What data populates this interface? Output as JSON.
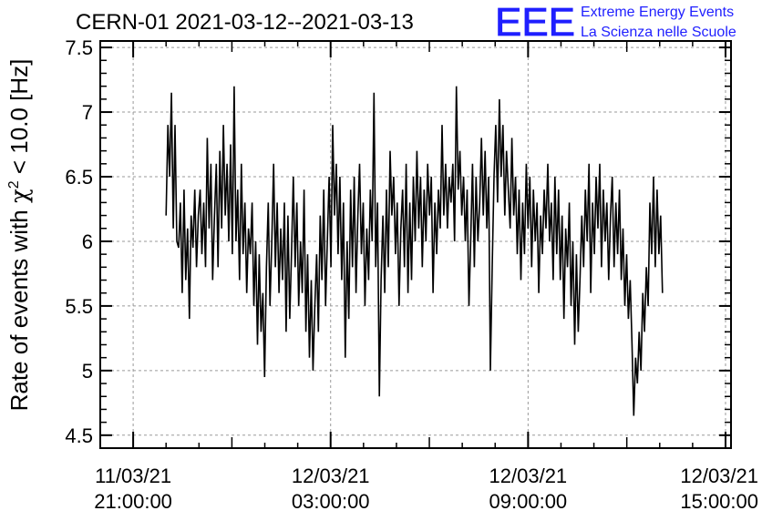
{
  "title": "CERN-01 2021-03-12--2021-03-13",
  "logo": {
    "mark": "EEE",
    "line1": "Extreme Energy Events",
    "line2": "La Scienza nelle Scuole",
    "color": "#1f1fff"
  },
  "y_axis_label": {
    "before": "Rate of events with ",
    "chi": "χ",
    "sup": "2",
    "after": " < 10.0 [Hz]"
  },
  "chart_data": {
    "type": "line",
    "title": "CERN-01 2021-03-12--2021-03-13",
    "ylabel": "Rate of events with χ² < 10.0 [Hz]",
    "xlabel": "",
    "ylim": [
      4.4,
      7.55
    ],
    "xlim": [
      "2021-03-11 20:00:00",
      "2021-03-12 15:10:00"
    ],
    "grid": true,
    "line_color": "#000000",
    "yticks": [
      {
        "value": 4.5,
        "label": "4.5"
      },
      {
        "value": 5,
        "label": "5"
      },
      {
        "value": 5.5,
        "label": "5.5"
      },
      {
        "value": 6,
        "label": "6"
      },
      {
        "value": 6.5,
        "label": "6.5"
      },
      {
        "value": 7,
        "label": "7"
      },
      {
        "value": 7.5,
        "label": "7.5"
      }
    ],
    "xticks": [
      {
        "value": "2021-03-11 21:00:00",
        "date": "11/03/21",
        "time": "21:00:00"
      },
      {
        "value": "2021-03-12 03:00:00",
        "date": "12/03/21",
        "time": "03:00:00"
      },
      {
        "value": "2021-03-12 09:00:00",
        "date": "12/03/21",
        "time": "09:00:00"
      },
      {
        "value": "2021-03-12 15:00:00",
        "date": "12/03/21",
        "time": "15:00:00"
      }
    ],
    "series": [
      {
        "x_start": "2021-03-11 22:00:00",
        "x_end": "2021-03-12 13:05:00",
        "values": [
          6.2,
          6.9,
          6.5,
          7.15,
          6.1,
          6.9,
          6.0,
          5.95,
          6.3,
          5.6,
          6.4,
          5.7,
          6.1,
          5.4,
          6.2,
          5.95,
          6.4,
          5.8,
          6.2,
          6.4,
          5.9,
          6.3,
          5.8,
          6.8,
          6.1,
          6.6,
          5.7,
          6.2,
          6.6,
          5.8,
          6.7,
          6.1,
          6.9,
          6.2,
          6.6,
          6.0,
          6.75,
          5.9,
          7.2,
          6.0,
          6.4,
          5.7,
          6.6,
          5.9,
          6.3,
          5.6,
          6.1,
          5.9,
          6.3,
          5.5,
          6.0,
          5.2,
          5.9,
          5.3,
          5.6,
          4.95,
          5.8,
          6.3,
          5.5,
          6.0,
          6.6,
          5.8,
          6.3,
          5.6,
          6.1,
          5.7,
          6.3,
          5.3,
          6.2,
          5.4,
          5.9,
          6.5,
          5.8,
          6.3,
          5.5,
          6.0,
          5.6,
          6.4,
          5.3,
          5.9,
          5.1,
          5.7,
          5.0,
          5.5,
          5.9,
          5.3,
          6.2,
          5.7,
          6.4,
          5.5,
          6.0,
          6.5,
          5.8,
          6.9,
          6.2,
          6.6,
          5.9,
          6.5,
          5.7,
          6.3,
          5.1,
          6.0,
          5.4,
          6.4,
          5.8,
          6.5,
          5.6,
          6.2,
          6.6,
          5.9,
          6.3,
          5.5,
          6.1,
          5.7,
          6.4,
          6.0,
          7.15,
          5.8,
          6.3,
          4.8,
          5.7,
          6.2,
          5.6,
          6.4,
          5.8,
          6.7,
          6.2,
          6.5,
          5.9,
          6.3,
          5.5,
          6.1,
          6.4,
          5.8,
          6.6,
          5.6,
          6.3,
          5.7,
          6.5,
          6.0,
          6.7,
          6.1,
          6.5,
          5.8,
          6.4,
          6.0,
          6.6,
          6.2,
          6.5,
          5.6,
          6.3,
          5.9,
          6.4,
          6.1,
          6.9,
          6.2,
          6.6,
          6.1,
          6.5,
          6.3,
          6.6,
          6.0,
          7.2,
          6.4,
          6.7,
          6.2,
          6.5,
          6.0,
          6.4,
          5.5,
          6.0,
          6.6,
          5.8,
          6.5,
          6.0,
          6.3,
          6.8,
          6.2,
          6.7,
          6.1,
          6.5,
          5.0,
          5.8,
          6.5,
          6.9,
          6.3,
          7.1,
          6.5,
          6.9,
          6.2,
          6.7,
          6.4,
          6.1,
          6.8,
          6.2,
          6.5,
          5.9,
          6.4,
          5.7,
          6.3,
          5.9,
          6.6,
          6.1,
          6.5,
          5.8,
          6.4,
          6.0,
          6.3,
          5.6,
          6.2,
          5.9,
          6.4,
          6.1,
          6.6,
          6.0,
          6.3,
          5.7,
          6.5,
          5.9,
          6.4,
          5.7,
          6.2,
          5.4,
          6.1,
          5.8,
          6.3,
          5.5,
          6.0,
          5.2,
          5.9,
          5.3,
          5.7,
          6.2,
          5.8,
          6.4,
          6.0,
          6.6,
          5.6,
          6.3,
          5.9,
          6.5,
          6.1,
          6.6,
          5.8,
          6.4,
          6.0,
          6.3,
          5.7,
          6.2,
          6.5,
          5.8,
          6.3,
          5.9,
          6.4,
          5.7,
          6.1,
          5.5,
          5.9,
          5.4,
          5.7,
          5.2,
          4.65,
          5.1,
          4.9,
          5.3,
          5.0,
          5.6,
          5.3,
          5.8,
          5.5,
          6.3,
          5.9,
          6.5,
          5.8,
          6.4,
          5.9,
          6.2,
          5.6
        ]
      }
    ]
  }
}
